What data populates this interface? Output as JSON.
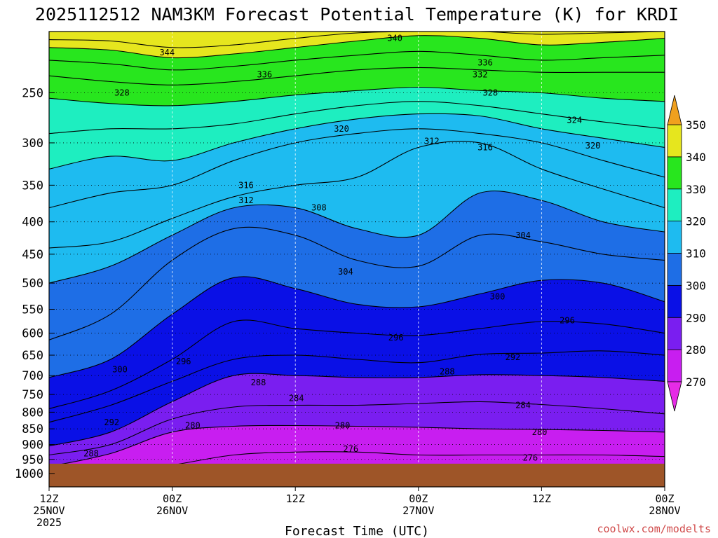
{
  "title": "2025112512 NAM3KM Forecast Potential Temperature (K) for KRDI",
  "credit": "coolwx.com/modelts",
  "chart_data": {
    "type": "heatmap",
    "title": "2025112512 NAM3KM Forecast Potential Temperature (K) for KRDI",
    "xlabel": "Forecast Time (UTC)",
    "ylabel": "",
    "x_range_hours": [
      0,
      60
    ],
    "y_scale": "log (pressure, hPa)",
    "ylim": [
      1050,
      200
    ],
    "x_ticks": [
      {
        "hour": 0,
        "lines": [
          "12Z",
          "25NOV",
          "2025"
        ]
      },
      {
        "hour": 12,
        "lines": [
          "00Z",
          "26NOV"
        ]
      },
      {
        "hour": 24,
        "lines": [
          "12Z"
        ]
      },
      {
        "hour": 36,
        "lines": [
          "00Z",
          "27NOV"
        ]
      },
      {
        "hour": 48,
        "lines": [
          "12Z"
        ]
      },
      {
        "hour": 60,
        "lines": [
          "00Z",
          "28NOV"
        ]
      }
    ],
    "y_ticks": [
      250,
      300,
      350,
      400,
      450,
      500,
      550,
      600,
      650,
      700,
      750,
      800,
      850,
      900,
      950,
      1000
    ],
    "grid": true,
    "colorbar": {
      "levels": [
        270,
        280,
        290,
        300,
        310,
        320,
        330,
        340,
        350
      ],
      "labels": [
        "350",
        "340",
        "330",
        "320",
        "310",
        "300",
        "290",
        "280",
        "270"
      ],
      "colors": [
        "#e62be6",
        "#c81ef0",
        "#7a1ef0",
        "#0a10e6",
        "#1e6ee6",
        "#1ebbf0",
        "#1eeec0",
        "#28e61e",
        "#e6e61e",
        "#f0a01e"
      ]
    },
    "ground_color": "#9e5528",
    "ground_pressure_hPa": 965,
    "x_hours": [
      0,
      6,
      12,
      18,
      24,
      30,
      36,
      42,
      48,
      54,
      60
    ],
    "isentropes_hPa": [
      {
        "theta": 276,
        "p": [
          1000,
          1000,
          970,
          935,
          925,
          925,
          935,
          935,
          935,
          935,
          940
        ]
      },
      {
        "theta": 280,
        "p": [
          975,
          930,
          860,
          842,
          840,
          842,
          845,
          850,
          852,
          855,
          860
        ]
      },
      {
        "theta": 284,
        "p": [
          935,
          900,
          820,
          785,
          780,
          780,
          775,
          770,
          778,
          790,
          805
        ]
      },
      {
        "theta": 288,
        "p": [
          905,
          860,
          770,
          700,
          700,
          705,
          705,
          698,
          700,
          705,
          715
        ]
      },
      {
        "theta": 292,
        "p": [
          830,
          780,
          715,
          660,
          650,
          660,
          668,
          648,
          645,
          640,
          650
        ]
      },
      {
        "theta": 296,
        "p": [
          790,
          740,
          660,
          575,
          590,
          600,
          605,
          590,
          575,
          580,
          600
        ]
      },
      {
        "theta": 300,
        "p": [
          705,
          660,
          560,
          490,
          510,
          540,
          545,
          520,
          495,
          500,
          535
        ]
      },
      {
        "theta": 304,
        "p": [
          615,
          560,
          460,
          410,
          420,
          460,
          470,
          420,
          430,
          450,
          460
        ]
      },
      {
        "theta": 308,
        "p": [
          500,
          470,
          420,
          380,
          380,
          410,
          420,
          360,
          370,
          400,
          415
        ]
      },
      {
        "theta": 312,
        "p": [
          440,
          430,
          395,
          365,
          350,
          340,
          305,
          300,
          330,
          355,
          380
        ]
      },
      {
        "theta": 316,
        "p": [
          380,
          360,
          350,
          320,
          300,
          290,
          285,
          290,
          300,
          320,
          340
        ]
      },
      {
        "theta": 320,
        "p": [
          330,
          315,
          320,
          300,
          285,
          275,
          270,
          272,
          285,
          295,
          305
        ]
      },
      {
        "theta": 324,
        "p": [
          290,
          285,
          285,
          280,
          270,
          262,
          258,
          262,
          270,
          278,
          285
        ]
      },
      {
        "theta": 328,
        "p": [
          255,
          260,
          262,
          258,
          252,
          248,
          245,
          248,
          250,
          255,
          258
        ]
      },
      {
        "theta": 332,
        "p": [
          235,
          240,
          243,
          240,
          235,
          230,
          228,
          230,
          232,
          232,
          232
        ]
      },
      {
        "theta": 336,
        "p": [
          222,
          225,
          230,
          227,
          222,
          218,
          215,
          218,
          222,
          220,
          218
        ]
      },
      {
        "theta": 340,
        "p": [
          212,
          214,
          220,
          217,
          212,
          207,
          203,
          205,
          210,
          208,
          205
        ]
      },
      {
        "theta": 344,
        "p": [
          206,
          207,
          212,
          210,
          205,
          201,
          200,
          200,
          202,
          201,
          200
        ]
      }
    ],
    "contour_labels": [
      {
        "text": "344",
        "hour": 11.5,
        "p": 216
      },
      {
        "text": "340",
        "hour": 33.7,
        "p": 205
      },
      {
        "text": "336",
        "hour": 21.0,
        "p": 234
      },
      {
        "text": "336",
        "hour": 42.5,
        "p": 224
      },
      {
        "text": "332",
        "hour": 42.0,
        "p": 234
      },
      {
        "text": "328",
        "hour": 7.1,
        "p": 250
      },
      {
        "text": "328",
        "hour": 43.0,
        "p": 250
      },
      {
        "text": "324",
        "hour": 51.2,
        "p": 276
      },
      {
        "text": "320",
        "hour": 28.5,
        "p": 285
      },
      {
        "text": "320",
        "hour": 53.0,
        "p": 303
      },
      {
        "text": "316",
        "hour": 42.5,
        "p": 305
      },
      {
        "text": "312",
        "hour": 37.3,
        "p": 298
      },
      {
        "text": "316",
        "hour": 19.2,
        "p": 350
      },
      {
        "text": "312",
        "hour": 19.2,
        "p": 370
      },
      {
        "text": "308",
        "hour": 26.3,
        "p": 380
      },
      {
        "text": "304",
        "hour": 46.2,
        "p": 420
      },
      {
        "text": "304",
        "hour": 28.9,
        "p": 480
      },
      {
        "text": "300",
        "hour": 43.7,
        "p": 525
      },
      {
        "text": "296",
        "hour": 50.5,
        "p": 573
      },
      {
        "text": "296",
        "hour": 33.8,
        "p": 610
      },
      {
        "text": "292",
        "hour": 45.2,
        "p": 655
      },
      {
        "text": "288",
        "hour": 38.8,
        "p": 690
      },
      {
        "text": "300",
        "hour": 6.9,
        "p": 685
      },
      {
        "text": "296",
        "hour": 13.1,
        "p": 665
      },
      {
        "text": "288",
        "hour": 20.4,
        "p": 718
      },
      {
        "text": "284",
        "hour": 24.1,
        "p": 760
      },
      {
        "text": "284",
        "hour": 46.2,
        "p": 780
      },
      {
        "text": "292",
        "hour": 6.1,
        "p": 830
      },
      {
        "text": "280",
        "hour": 14.0,
        "p": 840
      },
      {
        "text": "280",
        "hour": 28.6,
        "p": 840
      },
      {
        "text": "280",
        "hour": 47.8,
        "p": 860
      },
      {
        "text": "276",
        "hour": 29.4,
        "p": 915
      },
      {
        "text": "276",
        "hour": 46.9,
        "p": 945
      },
      {
        "text": "288",
        "hour": 4.1,
        "p": 930
      }
    ]
  }
}
